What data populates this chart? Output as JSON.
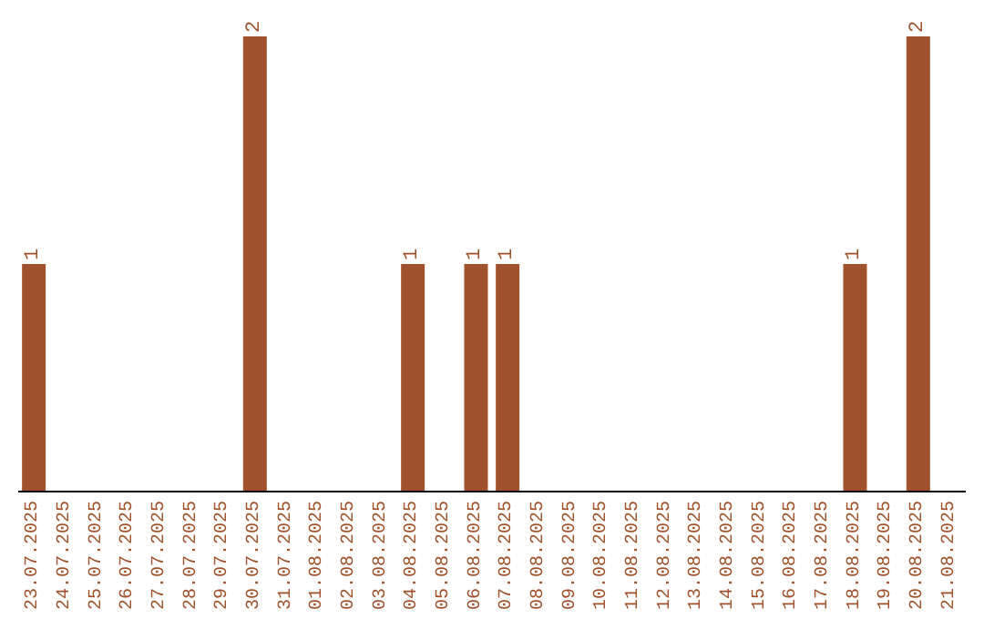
{
  "chart_data": {
    "type": "bar",
    "categories": [
      "23.07.2025",
      "24.07.2025",
      "25.07.2025",
      "26.07.2025",
      "27.07.2025",
      "28.07.2025",
      "29.07.2025",
      "30.07.2025",
      "31.07.2025",
      "01.08.2025",
      "02.08.2025",
      "03.08.2025",
      "04.08.2025",
      "05.08.2025",
      "06.08.2025",
      "07.08.2025",
      "08.08.2025",
      "09.08.2025",
      "10.08.2025",
      "11.08.2025",
      "12.08.2025",
      "13.08.2025",
      "14.08.2025",
      "15.08.2025",
      "16.08.2025",
      "17.08.2025",
      "18.08.2025",
      "19.08.2025",
      "20.08.2025",
      "21.08.2025"
    ],
    "values": [
      1,
      0,
      0,
      0,
      0,
      0,
      0,
      2,
      0,
      0,
      0,
      0,
      1,
      0,
      1,
      1,
      0,
      0,
      0,
      0,
      0,
      0,
      0,
      0,
      0,
      0,
      1,
      0,
      2,
      0
    ],
    "value_labels": [
      "1",
      null,
      null,
      null,
      null,
      null,
      null,
      "2",
      null,
      null,
      null,
      null,
      "1",
      null,
      "1",
      "1",
      null,
      null,
      null,
      null,
      null,
      null,
      null,
      null,
      null,
      null,
      "1",
      null,
      "2",
      null
    ],
    "color": "#a0522d",
    "grid": false,
    "legend": false
  }
}
